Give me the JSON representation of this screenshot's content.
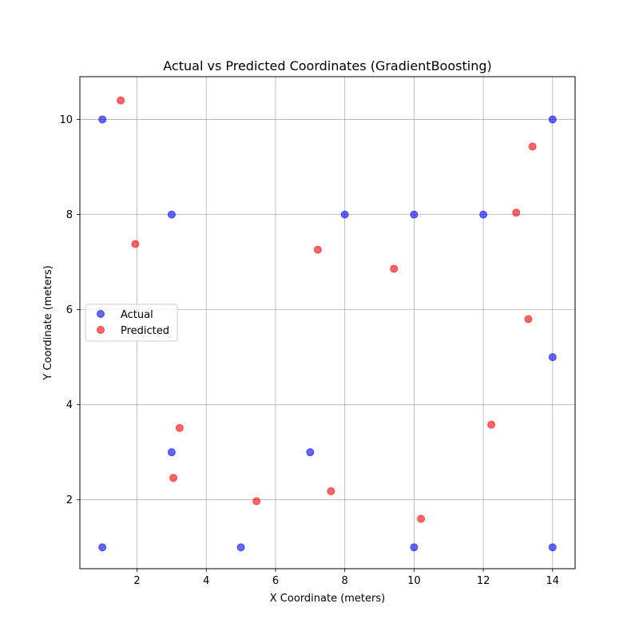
{
  "chart_data": {
    "type": "scatter",
    "title": "Actual vs Predicted Coordinates (GradientBoosting)",
    "xlabel": "X Coordinate (meters)",
    "ylabel": "Y Coordinate (meters)",
    "xlim": [
      0.35,
      14.65
    ],
    "ylim": [
      0.55,
      10.9
    ],
    "xticks": [
      2,
      4,
      6,
      8,
      10,
      12,
      14
    ],
    "yticks": [
      2,
      4,
      6,
      8,
      10
    ],
    "grid": true,
    "legend_position": "center-left",
    "series": [
      {
        "name": "Actual",
        "color": "#0000ff",
        "points": [
          {
            "x": 1,
            "y": 10
          },
          {
            "x": 3,
            "y": 8
          },
          {
            "x": 8,
            "y": 8
          },
          {
            "x": 10,
            "y": 8
          },
          {
            "x": 12,
            "y": 8
          },
          {
            "x": 14,
            "y": 10
          },
          {
            "x": 14,
            "y": 5
          },
          {
            "x": 3,
            "y": 3
          },
          {
            "x": 7,
            "y": 3
          },
          {
            "x": 1,
            "y": 1
          },
          {
            "x": 5,
            "y": 1
          },
          {
            "x": 10,
            "y": 1
          },
          {
            "x": 14,
            "y": 1
          }
        ]
      },
      {
        "name": "Predicted",
        "color": "#ff0000",
        "points": [
          {
            "x": 1.53,
            "y": 10.4
          },
          {
            "x": 1.95,
            "y": 7.38
          },
          {
            "x": 7.22,
            "y": 7.26
          },
          {
            "x": 9.42,
            "y": 6.86
          },
          {
            "x": 12.95,
            "y": 8.04
          },
          {
            "x": 13.42,
            "y": 9.43
          },
          {
            "x": 13.3,
            "y": 5.8
          },
          {
            "x": 12.23,
            "y": 3.58
          },
          {
            "x": 3.23,
            "y": 3.51
          },
          {
            "x": 3.05,
            "y": 2.46
          },
          {
            "x": 5.45,
            "y": 1.97
          },
          {
            "x": 7.6,
            "y": 2.18
          },
          {
            "x": 10.2,
            "y": 1.6
          }
        ]
      }
    ]
  }
}
